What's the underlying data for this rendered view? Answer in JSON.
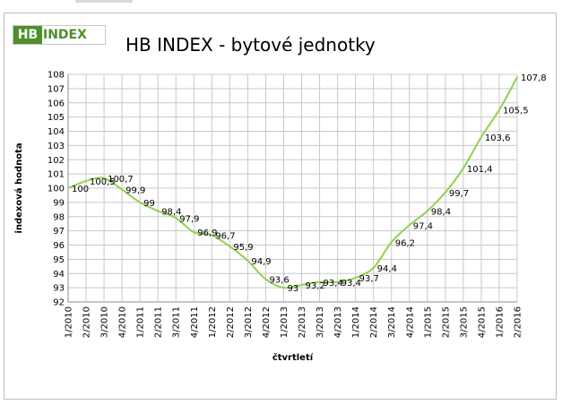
{
  "logo": {
    "hb": "HB",
    "index": "INDEX"
  },
  "chart_data": {
    "type": "line",
    "title": "HB INDEX - bytové jednotky",
    "xlabel": "čtvrtletí",
    "ylabel": "indexová hodnota",
    "ylim": [
      92,
      108
    ],
    "ytick_step": 1,
    "grid": true,
    "legend": "none",
    "line_color": "#92d050",
    "categories": [
      "1/2010",
      "2/2010",
      "3/2010",
      "4/2010",
      "1/2011",
      "2/2011",
      "3/2011",
      "4/2011",
      "1/2012",
      "2/2012",
      "3/2012",
      "4/2012",
      "1/2013",
      "2/2013",
      "3/2013",
      "4/2013",
      "1/2014",
      "2/2014",
      "3/2014",
      "4/2014",
      "1/2015",
      "2/2015",
      "3/2015",
      "4/2015",
      "1/2016",
      "2/2016"
    ],
    "values": [
      100,
      100.5,
      100.7,
      99.9,
      99,
      98.4,
      97.9,
      96.9,
      96.7,
      95.9,
      94.9,
      93.6,
      93,
      93.2,
      93.4,
      93.4,
      93.7,
      94.4,
      96.2,
      97.4,
      98.4,
      99.7,
      101.4,
      103.6,
      105.5,
      107.8
    ],
    "data_labels": [
      "100",
      "100,5",
      "100,7",
      "99,9",
      "99",
      "98,4",
      "97,9",
      "96,9",
      "96,7",
      "95,9",
      "94,9",
      "93,6",
      "93",
      "93,2",
      "93,4",
      "93,4",
      "93,7",
      "94,4",
      "96,2",
      "97,4",
      "98,4",
      "99,7",
      "101,4",
      "103,6",
      "105,5",
      "107,8"
    ]
  }
}
